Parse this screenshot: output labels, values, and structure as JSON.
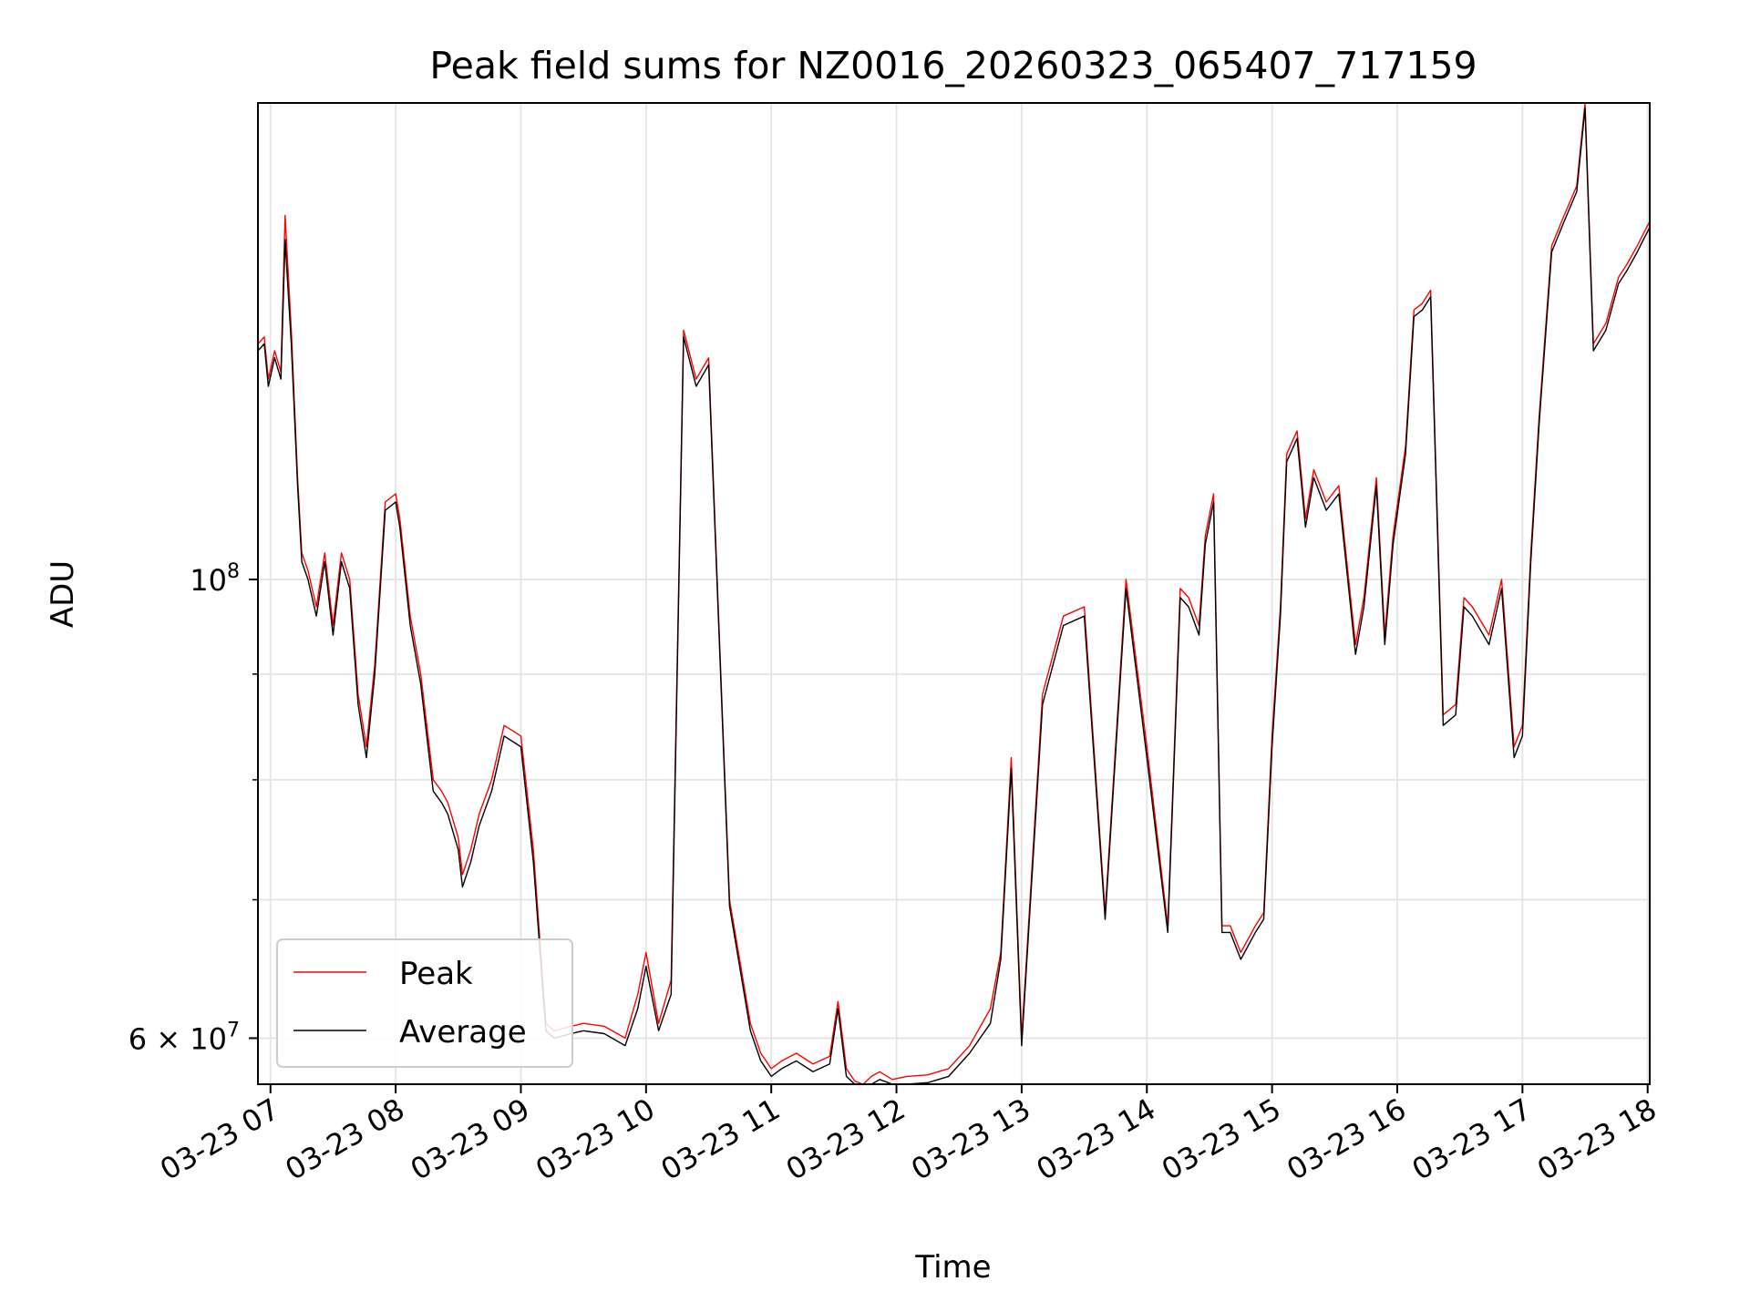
{
  "chart_data": {
    "type": "line",
    "title": "Peak field sums for NZ0016_20260323_065407_717159",
    "xlabel": "Time",
    "ylabel": "ADU",
    "x_scale": "time",
    "y_scale": "log",
    "xlim": [
      "2026-03-23 06:54",
      "2026-03-23 18:01"
    ],
    "ylim": [
      57000000,
      170000000
    ],
    "grid": true,
    "x_ticks": [
      {
        "label": "03-23 07",
        "time": "2026-03-23 07:00"
      },
      {
        "label": "03-23 08",
        "time": "2026-03-23 08:00"
      },
      {
        "label": "03-23 09",
        "time": "2026-03-23 09:00"
      },
      {
        "label": "03-23 10",
        "time": "2026-03-23 10:00"
      },
      {
        "label": "03-23 11",
        "time": "2026-03-23 11:00"
      },
      {
        "label": "03-23 12",
        "time": "2026-03-23 12:00"
      },
      {
        "label": "03-23 13",
        "time": "2026-03-23 13:00"
      },
      {
        "label": "03-23 14",
        "time": "2026-03-23 14:00"
      },
      {
        "label": "03-23 15",
        "time": "2026-03-23 15:00"
      },
      {
        "label": "03-23 16",
        "time": "2026-03-23 16:00"
      },
      {
        "label": "03-23 17",
        "time": "2026-03-23 17:00"
      },
      {
        "label": "03-23 18",
        "time": "2026-03-23 18:00"
      }
    ],
    "y_major_ticks": [
      {
        "value": 60000000,
        "label_mant": "6",
        "label_base": "10",
        "label_exp": "7"
      },
      {
        "value": 100000000,
        "label_mant": "",
        "label_base": "10",
        "label_exp": "8"
      }
    ],
    "y_minor_ticks": [
      70000000,
      80000000,
      90000000
    ],
    "legend": {
      "position": "lower-left"
    },
    "series": [
      {
        "name": "Peak",
        "color": "#ff0000",
        "x": [
          "06:54",
          "06:57",
          "06:59",
          "07:02",
          "07:05",
          "07:07",
          "07:10",
          "07:13",
          "07:15",
          "07:18",
          "07:22",
          "07:26",
          "07:30",
          "07:34",
          "07:38",
          "07:42",
          "07:46",
          "07:50",
          "07:55",
          "08:00",
          "08:02",
          "08:07",
          "08:12",
          "08:18",
          "08:22",
          "08:25",
          "08:30",
          "08:32",
          "08:36",
          "08:40",
          "08:46",
          "08:52",
          "09:00",
          "09:06",
          "09:12",
          "09:16",
          "09:24",
          "09:30",
          "09:40",
          "09:50",
          "09:56",
          "10:00",
          "10:06",
          "10:12",
          "10:18",
          "10:24",
          "10:30",
          "10:40",
          "10:50",
          "10:55",
          "11:00",
          "11:05",
          "11:12",
          "11:20",
          "11:28",
          "11:32",
          "11:36",
          "11:40",
          "11:44",
          "11:48",
          "11:52",
          "11:58",
          "12:05",
          "12:15",
          "12:25",
          "12:35",
          "12:45",
          "12:50",
          "12:55",
          "13:00",
          "13:10",
          "13:20",
          "13:30",
          "13:40",
          "13:50",
          "14:00",
          "14:10",
          "14:16",
          "14:20",
          "14:25",
          "14:28",
          "14:32",
          "14:36",
          "14:40",
          "14:45",
          "14:52",
          "14:56",
          "15:00",
          "15:04",
          "15:07",
          "15:12",
          "15:16",
          "15:20",
          "15:26",
          "15:32",
          "15:40",
          "15:44",
          "15:50",
          "15:54",
          "15:58",
          "16:04",
          "16:08",
          "16:12",
          "16:16",
          "16:22",
          "16:28",
          "16:32",
          "16:36",
          "16:44",
          "16:50",
          "16:56",
          "17:00",
          "17:04",
          "17:08",
          "17:14",
          "17:20",
          "17:26",
          "17:30",
          "17:34",
          "17:40",
          "17:46",
          "17:50",
          "17:55",
          "17:58",
          "18:01"
        ],
        "values": [
          130000000,
          131000000,
          125000000,
          129000000,
          126000000,
          150000000,
          132000000,
          112000000,
          103000000,
          101000000,
          97000000,
          103000000,
          95000000,
          103000000,
          100000000,
          88000000,
          83000000,
          91000000,
          109000000,
          110000000,
          107000000,
          96000000,
          90000000,
          80000000,
          79000000,
          78000000,
          75000000,
          72000000,
          74000000,
          77000000,
          80000000,
          85000000,
          84000000,
          74000000,
          61000000,
          60500000,
          60800000,
          61000000,
          60800000,
          60000000,
          63000000,
          66000000,
          61000000,
          64000000,
          132000000,
          125000000,
          128000000,
          70000000,
          61000000,
          59000000,
          58000000,
          58500000,
          59000000,
          58300000,
          58800000,
          62500000,
          58000000,
          57200000,
          57000000,
          57500000,
          57800000,
          57300000,
          57500000,
          57600000,
          58000000,
          59500000,
          62000000,
          66000000,
          82000000,
          60000000,
          88000000,
          96000000,
          97000000,
          69000000,
          100000000,
          83000000,
          68000000,
          99000000,
          98000000,
          95000000,
          105000000,
          110000000,
          68000000,
          68000000,
          66000000,
          68000000,
          69000000,
          84000000,
          97000000,
          115000000,
          118000000,
          107000000,
          113000000,
          109000000,
          111000000,
          93000000,
          98000000,
          112000000,
          94000000,
          105000000,
          116000000,
          135000000,
          136000000,
          138000000,
          86000000,
          87000000,
          98000000,
          97000000,
          94000000,
          100000000,
          83000000,
          85000000,
          103000000,
          120000000,
          145000000,
          150000000,
          155000000,
          170000000,
          130000000,
          133000000,
          140000000,
          142000000,
          145000000,
          147000000,
          149000000
        ]
      },
      {
        "name": "Average",
        "color": "#000000",
        "x": [
          "06:54",
          "06:57",
          "06:59",
          "07:02",
          "07:05",
          "07:07",
          "07:10",
          "07:13",
          "07:15",
          "07:18",
          "07:22",
          "07:26",
          "07:30",
          "07:34",
          "07:38",
          "07:42",
          "07:46",
          "07:50",
          "07:55",
          "08:00",
          "08:02",
          "08:07",
          "08:12",
          "08:18",
          "08:22",
          "08:25",
          "08:30",
          "08:32",
          "08:36",
          "08:40",
          "08:46",
          "08:52",
          "09:00",
          "09:06",
          "09:12",
          "09:16",
          "09:24",
          "09:30",
          "09:40",
          "09:50",
          "09:56",
          "10:00",
          "10:06",
          "10:12",
          "10:18",
          "10:24",
          "10:30",
          "10:40",
          "10:50",
          "10:55",
          "11:00",
          "11:05",
          "11:12",
          "11:20",
          "11:28",
          "11:32",
          "11:36",
          "11:40",
          "11:44",
          "11:48",
          "11:52",
          "11:58",
          "12:05",
          "12:15",
          "12:25",
          "12:35",
          "12:45",
          "12:50",
          "12:55",
          "13:00",
          "13:10",
          "13:20",
          "13:30",
          "13:40",
          "13:50",
          "14:00",
          "14:10",
          "14:16",
          "14:20",
          "14:25",
          "14:28",
          "14:32",
          "14:36",
          "14:40",
          "14:45",
          "14:52",
          "14:56",
          "15:00",
          "15:04",
          "15:07",
          "15:12",
          "15:16",
          "15:20",
          "15:26",
          "15:32",
          "15:40",
          "15:44",
          "15:50",
          "15:54",
          "15:58",
          "16:04",
          "16:08",
          "16:12",
          "16:16",
          "16:22",
          "16:28",
          "16:32",
          "16:36",
          "16:44",
          "16:50",
          "16:56",
          "17:00",
          "17:04",
          "17:08",
          "17:14",
          "17:20",
          "17:26",
          "17:30",
          "17:34",
          "17:40",
          "17:46",
          "17:50",
          "17:55",
          "17:58",
          "18:01"
        ],
        "values": [
          129000000,
          130000000,
          124000000,
          128000000,
          125000000,
          146000000,
          130000000,
          111000000,
          102000000,
          100000000,
          96000000,
          102000000,
          94000000,
          102000000,
          99000000,
          87000000,
          82000000,
          90000000,
          108000000,
          109000000,
          106000000,
          95000000,
          89000000,
          79000000,
          78000000,
          77000000,
          74000000,
          71000000,
          73000000,
          76000000,
          79000000,
          84000000,
          83000000,
          73000000,
          60500000,
          60000000,
          60300000,
          60500000,
          60300000,
          59500000,
          62000000,
          65000000,
          60500000,
          63000000,
          131000000,
          124000000,
          127000000,
          69500000,
          60500000,
          58500000,
          57500000,
          58000000,
          58500000,
          57800000,
          58300000,
          62000000,
          57500000,
          56800000,
          56600000,
          57000000,
          57300000,
          56900000,
          57000000,
          57100000,
          57500000,
          59000000,
          61000000,
          65500000,
          81000000,
          59500000,
          87000000,
          95000000,
          96000000,
          68500000,
          99000000,
          82000000,
          67500000,
          98000000,
          97000000,
          94000000,
          104000000,
          109000000,
          67500000,
          67500000,
          65500000,
          67500000,
          68500000,
          83000000,
          96000000,
          114000000,
          117000000,
          106000000,
          112000000,
          108000000,
          110000000,
          92000000,
          97000000,
          111000000,
          93000000,
          104000000,
          115000000,
          134000000,
          135000000,
          137000000,
          85000000,
          86000000,
          97000000,
          96000000,
          93000000,
          99000000,
          82000000,
          84000000,
          102000000,
          119000000,
          144000000,
          149000000,
          154000000,
          169000000,
          129000000,
          132000000,
          139000000,
          141000000,
          144000000,
          146000000,
          148000000
        ]
      }
    ]
  }
}
